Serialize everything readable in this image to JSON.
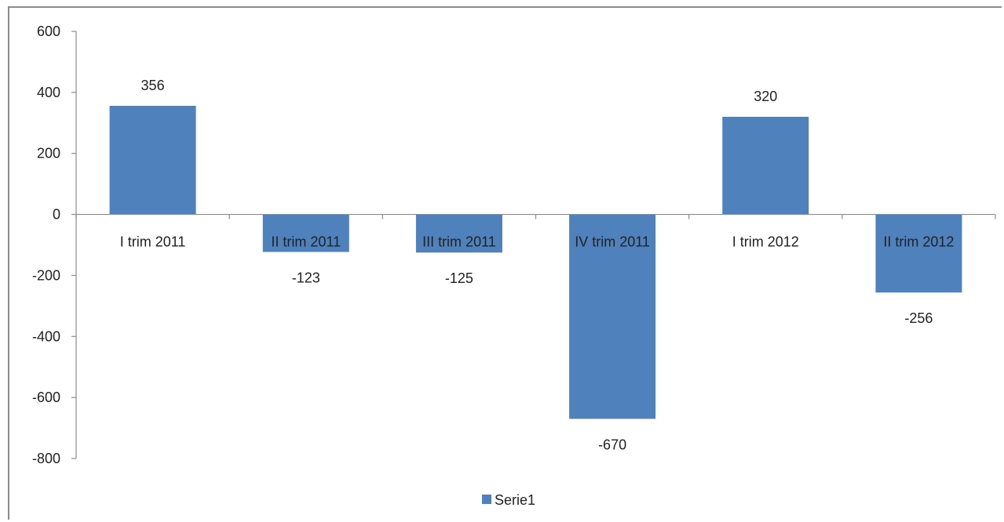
{
  "chart_data": {
    "type": "bar",
    "categories": [
      "I trim 2011",
      "II trim 2011",
      "III trim 2011",
      "IV trim 2011",
      "I trim 2012",
      "II trim 2012"
    ],
    "series": [
      {
        "name": "Serie1",
        "values": [
          356,
          -123,
          -125,
          -670,
          320,
          -256
        ],
        "color": "#4f81bd"
      }
    ],
    "data_labels": [
      "356",
      "-123",
      "-125",
      "-670",
      "320",
      "-256"
    ],
    "yticks": [
      600,
      400,
      200,
      0,
      -200,
      -400,
      -600,
      -800
    ],
    "ytick_labels": [
      "600",
      "400",
      "200",
      "0",
      "-200",
      "-400",
      "-600",
      "-800"
    ],
    "ylim": [
      -800,
      600
    ],
    "grid": false,
    "legend_position": "bottom",
    "axis_color": "#8c8c8c"
  }
}
